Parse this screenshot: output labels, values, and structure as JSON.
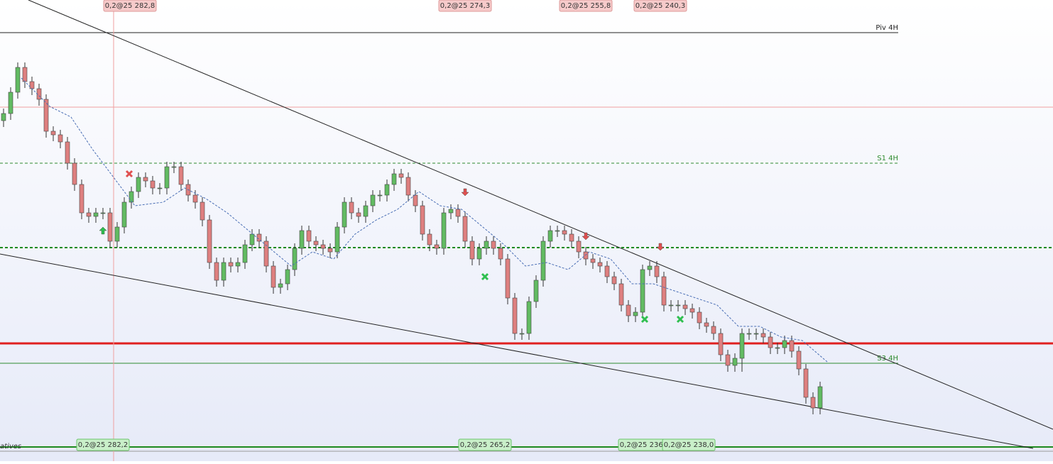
{
  "chart_data": {
    "type": "candlestick",
    "xlim": [
      -0.5,
      147.8
    ],
    "ylim": [
      0,
      650
    ],
    "up_color": "#62bb62",
    "down_color": "#de7f7f",
    "open": [
      480,
      490,
      520,
      555,
      535,
      525,
      510,
      465,
      460,
      450,
      420,
      390,
      350,
      345,
      350,
      350,
      310,
      330,
      365,
      380,
      400,
      395,
      385,
      385,
      415,
      415,
      390,
      375,
      365,
      340,
      280,
      255,
      280,
      275,
      280,
      305,
      320,
      310,
      275,
      245,
      250,
      270,
      300,
      325,
      310,
      305,
      300,
      295,
      330,
      365,
      350,
      345,
      360,
      375,
      375,
      390,
      405,
      400,
      375,
      360,
      320,
      305,
      300,
      350,
      355,
      345,
      310,
      285,
      300,
      310,
      300,
      285,
      230,
      180,
      180,
      225,
      255,
      310,
      325,
      325,
      320,
      310,
      295,
      285,
      280,
      275,
      260,
      250,
      220,
      205,
      210,
      270,
      275,
      260,
      220,
      220,
      220,
      215,
      210,
      195,
      190,
      180,
      150,
      135,
      145,
      180,
      180,
      180,
      175,
      160,
      160,
      170,
      155,
      130,
      90,
      75
    ],
    "high": [
      497,
      527,
      562,
      562,
      542,
      532,
      517,
      472,
      467,
      457,
      427,
      397,
      357,
      357,
      357,
      357,
      337,
      372,
      387,
      407,
      407,
      402,
      392,
      422,
      422,
      422,
      397,
      382,
      372,
      347,
      287,
      287,
      287,
      287,
      312,
      327,
      327,
      317,
      282,
      257,
      277,
      307,
      332,
      332,
      317,
      312,
      307,
      337,
      372,
      372,
      357,
      367,
      382,
      382,
      397,
      412,
      412,
      407,
      382,
      367,
      327,
      312,
      357,
      362,
      362,
      352,
      317,
      307,
      317,
      317,
      307,
      292,
      237,
      187,
      232,
      262,
      317,
      332,
      332,
      332,
      327,
      317,
      302,
      292,
      287,
      282,
      267,
      257,
      227,
      217,
      277,
      282,
      282,
      267,
      227,
      227,
      227,
      222,
      217,
      202,
      197,
      187,
      157,
      152,
      187,
      187,
      187,
      187,
      182,
      167,
      177,
      177,
      162,
      137,
      97,
      112
    ],
    "low": [
      471,
      481,
      511,
      526,
      516,
      501,
      456,
      451,
      441,
      411,
      381,
      341,
      336,
      336,
      341,
      301,
      301,
      321,
      356,
      371,
      386,
      376,
      376,
      376,
      406,
      381,
      366,
      356,
      331,
      271,
      246,
      246,
      266,
      266,
      271,
      296,
      301,
      266,
      236,
      236,
      241,
      261,
      291,
      301,
      296,
      291,
      286,
      286,
      321,
      341,
      336,
      336,
      351,
      366,
      366,
      381,
      391,
      366,
      351,
      311,
      296,
      291,
      291,
      341,
      336,
      301,
      276,
      276,
      291,
      291,
      276,
      221,
      171,
      171,
      171,
      216,
      246,
      301,
      316,
      311,
      301,
      286,
      276,
      271,
      266,
      251,
      241,
      211,
      196,
      196,
      201,
      261,
      251,
      211,
      211,
      211,
      206,
      201,
      186,
      181,
      171,
      141,
      126,
      126,
      126,
      171,
      171,
      166,
      151,
      151,
      151,
      146,
      121,
      81,
      66,
      66
    ],
    "close": [
      490,
      520,
      555,
      535,
      525,
      510,
      465,
      460,
      450,
      420,
      390,
      350,
      345,
      350,
      350,
      310,
      330,
      365,
      380,
      400,
      395,
      385,
      385,
      415,
      415,
      390,
      375,
      365,
      340,
      280,
      255,
      280,
      275,
      280,
      305,
      320,
      310,
      275,
      245,
      250,
      270,
      300,
      325,
      310,
      305,
      300,
      295,
      330,
      365,
      350,
      345,
      360,
      375,
      375,
      390,
      405,
      400,
      375,
      360,
      320,
      305,
      300,
      350,
      355,
      345,
      310,
      285,
      300,
      310,
      300,
      285,
      230,
      180,
      180,
      225,
      255,
      310,
      325,
      325,
      320,
      310,
      295,
      285,
      280,
      275,
      260,
      250,
      220,
      205,
      210,
      270,
      275,
      260,
      220,
      220,
      220,
      215,
      210,
      195,
      190,
      180,
      150,
      135,
      145,
      180,
      180,
      180,
      175,
      160,
      160,
      170,
      155,
      130,
      90,
      75,
      105
    ],
    "ma": {
      "color": "#4a6fb5",
      "x": [
        2.5,
        6.5,
        9.5,
        12.5,
        15.5,
        18.5,
        22.5,
        25.5,
        28.5,
        31.5,
        34.5,
        37.5,
        40.5,
        43.5,
        46.5,
        49.5,
        52.5,
        55.5,
        58.5,
        61.5,
        64.5,
        67.5,
        70.5,
        73.5,
        76.5,
        79.5,
        82.5,
        85.5,
        88.5,
        91.5,
        94.5,
        97.5,
        100.5,
        103.5,
        106.5,
        109.5,
        112.5,
        116
      ],
      "values": [
        540,
        500,
        485,
        440,
        400,
        360,
        365,
        385,
        370,
        350,
        325,
        300,
        275,
        295,
        285,
        320,
        340,
        355,
        380,
        360,
        355,
        330,
        305,
        275,
        280,
        270,
        295,
        285,
        250,
        250,
        240,
        230,
        220,
        190,
        190,
        175,
        170,
        140
      ]
    },
    "trendlines": [
      {
        "x": [
          3.5,
          147.8
        ],
        "values": [
          650,
          45
        ]
      },
      {
        "x": [
          -0.5,
          145
        ],
        "values": [
          292,
          18
        ]
      }
    ],
    "cursor_x": 15.5,
    "levels": [
      {
        "label": "Piv 4H",
        "value": 604,
        "color": "#222222",
        "style": "solid",
        "width": 1,
        "full": false
      },
      {
        "label": null,
        "value": 499,
        "color": "#f0a0a0",
        "style": "solid",
        "width": 1,
        "full": true
      },
      {
        "label": "S1 4H",
        "value": 420,
        "color": "#2e8b2e",
        "style": "dashed",
        "width": 1,
        "full": false
      },
      {
        "label": null,
        "value": 301,
        "color": "#1e8a1e",
        "style": "dashed",
        "width": 2,
        "full": true
      },
      {
        "label": null,
        "value": 166,
        "color": "#e02020",
        "style": "solid",
        "width": 3,
        "full": true
      },
      {
        "label": "S3 4H",
        "value": 138,
        "color": "#2e8b2e",
        "style": "solid",
        "width": 1,
        "full": false
      },
      {
        "label": null,
        "value": 20,
        "color": "#1e8a1e",
        "style": "solid",
        "width": 2,
        "full": true
      },
      {
        "label": null,
        "value": 14,
        "color": "#999999",
        "style": "solid",
        "width": 1,
        "full": true
      }
    ],
    "orders_top": [
      "0,2@25 282,8",
      "0,2@25 274,3",
      "0,2@25 255,8",
      "0,2@25 240,3"
    ],
    "orders_bottom": [
      "0,2@25 282,2",
      "0,2@25 265,2",
      "0,2@25 236,0",
      "0,2@25 238,0"
    ],
    "footer_text": "atives"
  }
}
